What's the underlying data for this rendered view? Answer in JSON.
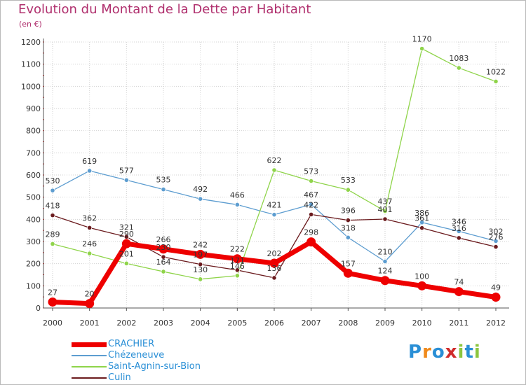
{
  "title": "Evolution du Montant de la Dette par Habitant",
  "unit": "(en €)",
  "logo": "Proxiti",
  "chart_data": {
    "type": "line",
    "title": "Evolution du Montant de la Dette par Habitant",
    "ylabel": "(en €)",
    "x": [
      "2000",
      "2001",
      "2002",
      "2003",
      "2004",
      "2005",
      "2006",
      "2007",
      "2008",
      "2009",
      "2010",
      "2011",
      "2012"
    ],
    "ylim": [
      0,
      1200
    ],
    "yticks": [
      0,
      100,
      200,
      300,
      400,
      500,
      600,
      700,
      800,
      900,
      1000,
      1100,
      1200
    ],
    "grid": true,
    "legend_position": "bottom-left",
    "series": [
      {
        "name": "Chézeneuve",
        "color": "#5d9dd0",
        "values": [
          530,
          619,
          577,
          535,
          492,
          466,
          421,
          467,
          318,
          210,
          386,
          346,
          302
        ]
      },
      {
        "name": "Saint-Agnin-sur-Bion",
        "color": "#8fd44a",
        "values": [
          289,
          246,
          201,
          164,
          130,
          146,
          622,
          573,
          533,
          437,
          1170,
          1083,
          1022
        ]
      },
      {
        "name": "Culin",
        "color": "#6b1b1e",
        "values": [
          418,
          362,
          321,
          230,
          197,
          171,
          136,
          422,
          396,
          401,
          361,
          316,
          276
        ]
      },
      {
        "name": "CRACHIER",
        "color": "#ee0000",
        "values": [
          27,
          20,
          290,
          266,
          242,
          222,
          202,
          298,
          157,
          124,
          100,
          74,
          49
        ]
      }
    ]
  }
}
